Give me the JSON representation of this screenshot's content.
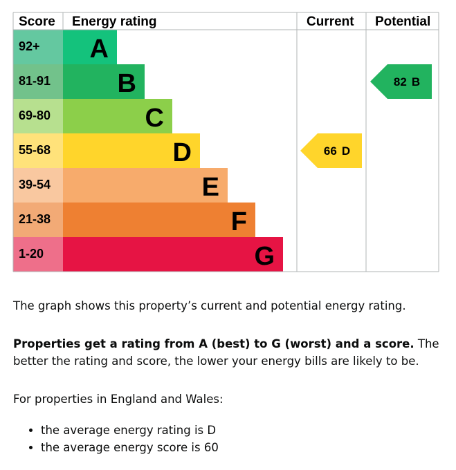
{
  "table": {
    "headers": [
      "Score",
      "Energy rating",
      "Current",
      "Potential"
    ],
    "bands": [
      {
        "score": "92+",
        "letter": "A"
      },
      {
        "score": "81-91",
        "letter": "B"
      },
      {
        "score": "69-80",
        "letter": "C"
      },
      {
        "score": "55-68",
        "letter": "D"
      },
      {
        "score": "39-54",
        "letter": "E"
      },
      {
        "score": "21-38",
        "letter": "F"
      },
      {
        "score": "1-20",
        "letter": "G"
      }
    ],
    "current": {
      "score": 66,
      "letter": "D"
    },
    "potential": {
      "score": 82,
      "letter": "B"
    }
  },
  "text": {
    "intro": "The graph shows this property’s current and potential energy rating.",
    "rating_bold": "Properties get a rating from A (best) to G (worst) and a score.",
    "rating_rest": "The better the rating and score, the lower your energy bills are likely to be.",
    "england": "For properties in England and Wales:",
    "bullets": [
      "the average energy rating is D",
      "the average energy score is 60"
    ]
  }
}
